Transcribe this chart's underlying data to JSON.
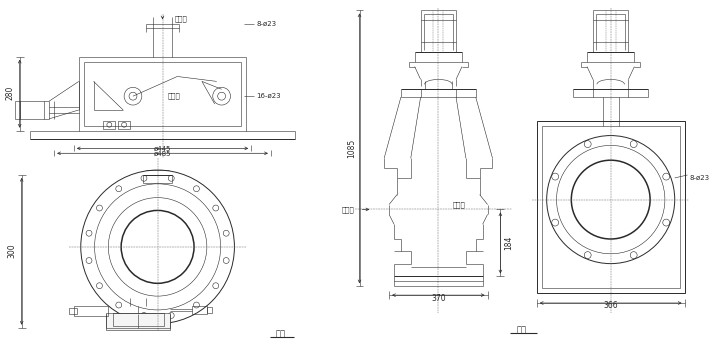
{
  "bg_color": "#ffffff",
  "line_color": "#2a2a2a",
  "dim_color": "#2a2a2a",
  "text_color": "#2a2a2a",
  "fig_label1": "图二",
  "fig_label2": "图三",
  "annotations": {
    "tl_8_phi23": "8-ø23",
    "tl_16_phi23": "16-ø23",
    "tl_280": "280",
    "tl_phi445": "ø445",
    "tl_phi485": "ø485",
    "tl_inlet": "进料口",
    "tl_outlet": "出料口",
    "bl_300": "300",
    "r_1085": "1085",
    "r_184": "184",
    "r_370": "370",
    "r_366": "366",
    "r_8_phi23": "8-ø23",
    "r_inlet": "进料口",
    "r_outlet": "出料口"
  }
}
